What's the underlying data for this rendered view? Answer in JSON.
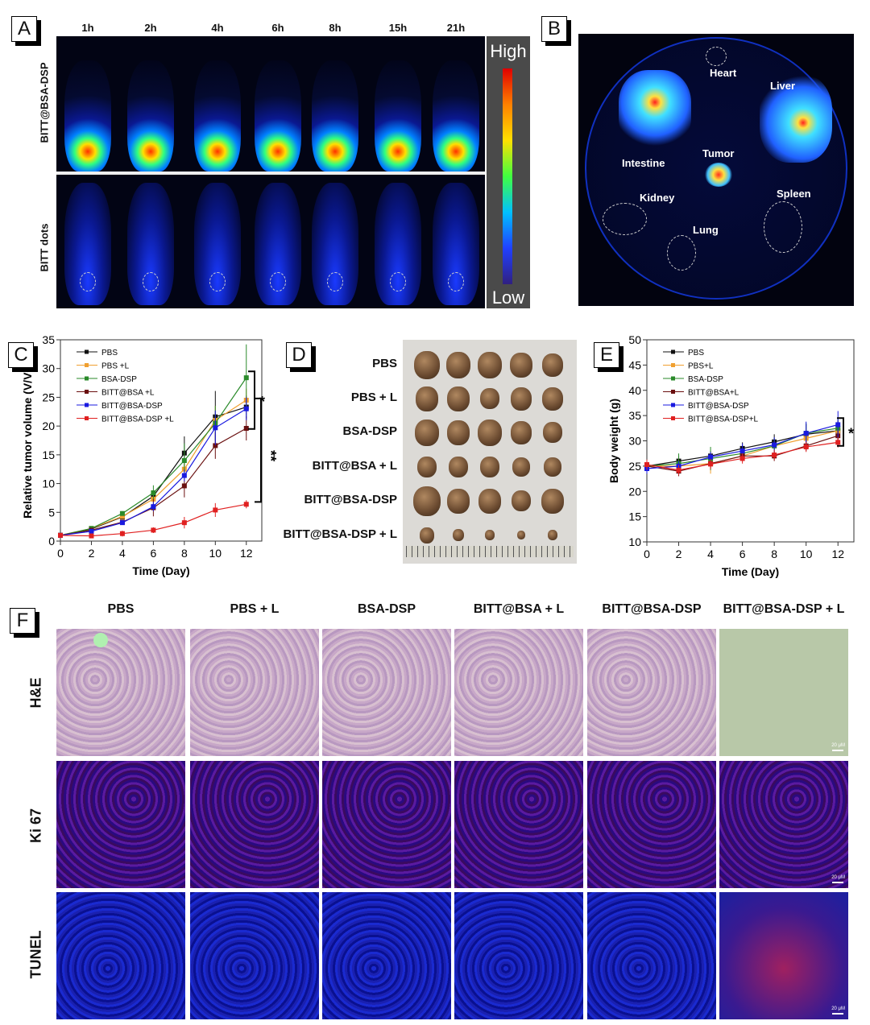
{
  "panels": {
    "A": {
      "label": "A",
      "times": [
        "1h",
        "2h",
        "4h",
        "6h",
        "8h",
        "15h",
        "21h"
      ],
      "rows": [
        "BITT@BSA-DSP",
        "BITT dots"
      ],
      "colorbar": {
        "high": "High",
        "low": "Low"
      }
    },
    "B": {
      "label": "B",
      "organs": {
        "heart": "Heart",
        "liver": "Liver",
        "intestine": "Intestine",
        "tumor": "Tumor",
        "kidney": "Kidney",
        "spleen": "Spleen",
        "lung": "Lung"
      }
    },
    "C": {
      "label": "C",
      "sig1": "*",
      "sig2": "**"
    },
    "D": {
      "label": "D",
      "rows": [
        "PBS",
        "PBS + L",
        "BSA-DSP",
        "BITT@BSA + L",
        "BITT@BSA-DSP",
        "BITT@BSA-DSP + L"
      ]
    },
    "E": {
      "label": "E",
      "sig": "*"
    },
    "F": {
      "label": "F",
      "columns": [
        "PBS",
        "PBS + L",
        "BSA-DSP",
        "BITT@BSA + L",
        "BITT@BSA-DSP",
        "BITT@BSA-DSP + L"
      ],
      "rows": [
        "H&E",
        "Ki 67",
        "TUNEL"
      ],
      "scalebar": "20 μM"
    }
  },
  "colors": {
    "PBS": "#111111",
    "PBS+L": "#f0a030",
    "BSA-DSP": "#2a8a2a",
    "BITT@BSA+L": "#6a1010",
    "BITT@BSA-DSP": "#1a1ae0",
    "BITT@BSA-DSP+L": "#e02020"
  },
  "chart_data": [
    {
      "type": "line",
      "id": "C",
      "xlabel": "Time (Day)",
      "ylabel": "Relative tumor volume (V/V0)",
      "xlim": [
        0,
        13
      ],
      "ylim": [
        0,
        35
      ],
      "xticks": [
        0,
        2,
        4,
        6,
        8,
        10,
        12
      ],
      "yticks": [
        0,
        5,
        10,
        15,
        20,
        25,
        30,
        35
      ],
      "x": [
        0,
        2,
        4,
        6,
        8,
        10,
        12
      ],
      "legend": "top-left",
      "series": [
        {
          "name": "PBS",
          "values": [
            1,
            2.1,
            4.2,
            7.8,
            15.3,
            21.6,
            23.3
          ],
          "err": [
            0.2,
            0.3,
            0.4,
            0.8,
            2.9,
            4.5,
            2
          ]
        },
        {
          "name": "PBS +L",
          "values": [
            1,
            2.2,
            4.3,
            7.3,
            12.5,
            21,
            24.5
          ],
          "err": [
            0.2,
            0.3,
            0.4,
            0.8,
            1.5,
            2.5,
            2
          ]
        },
        {
          "name": "BSA-DSP",
          "values": [
            1,
            2.2,
            4.8,
            8.4,
            14,
            20.5,
            28.4
          ],
          "err": [
            0.2,
            0.3,
            0.4,
            1.3,
            3,
            3,
            5.8
          ]
        },
        {
          "name": "BITT@BSA +L",
          "values": [
            1,
            1.9,
            3.3,
            5.8,
            9.6,
            16.6,
            19.6
          ],
          "err": [
            0.2,
            0.3,
            0.4,
            1.5,
            2,
            2.3,
            2.1
          ]
        },
        {
          "name": "BITT@BSA-DSP",
          "values": [
            1,
            1.7,
            3.2,
            6,
            11.4,
            19.7,
            23
          ],
          "err": [
            0.2,
            0.3,
            0.4,
            0.8,
            1,
            3,
            2
          ]
        },
        {
          "name": "BITT@BSA-DSP +L",
          "values": [
            1,
            0.9,
            1.3,
            1.9,
            3.2,
            5.4,
            6.4
          ],
          "err": [
            0.4,
            0.3,
            0.5,
            0.5,
            1,
            1.2,
            0.7
          ]
        }
      ]
    },
    {
      "type": "line",
      "id": "E",
      "xlabel": "Time (Day)",
      "ylabel": "Body weight (g)",
      "xlim": [
        0,
        13
      ],
      "ylim": [
        10,
        50
      ],
      "xticks": [
        0,
        2,
        4,
        6,
        8,
        10,
        12
      ],
      "yticks": [
        10,
        15,
        20,
        25,
        30,
        35,
        40,
        45,
        50
      ],
      "x": [
        0,
        2,
        4,
        6,
        8,
        10,
        12
      ],
      "legend": "top-left",
      "series": [
        {
          "name": "PBS",
          "values": [
            25,
            26,
            27,
            28.5,
            29.8,
            31.3,
            32
          ],
          "err": [
            1,
            1,
            1,
            1.2,
            1.5,
            2,
            2
          ]
        },
        {
          "name": "PBS+L",
          "values": [
            25,
            25,
            25.5,
            27,
            29,
            30.5,
            32
          ],
          "err": [
            1,
            1.5,
            2,
            1,
            1,
            1.5,
            1.5
          ]
        },
        {
          "name": "BSA-DSP",
          "values": [
            25,
            25.5,
            26.5,
            27.5,
            29,
            31.5,
            32.5
          ],
          "err": [
            1,
            2,
            2.3,
            1,
            1.5,
            2,
            2
          ]
        },
        {
          "name": "BITT@BSA+L",
          "values": [
            25,
            24,
            25.5,
            27,
            27,
            29,
            31
          ],
          "err": [
            1,
            1,
            1,
            1,
            1,
            1,
            1
          ]
        },
        {
          "name": "BITT@BSA-DSP",
          "values": [
            24.5,
            25,
            26.8,
            28,
            29.2,
            31.5,
            33.2
          ],
          "err": [
            1,
            1,
            1,
            1.5,
            1.5,
            2.3,
            2.7
          ]
        },
        {
          "name": "BITT@BSA-DSP+L",
          "values": [
            25.3,
            24.2,
            25.4,
            26.5,
            27.2,
            28.8,
            29.7
          ],
          "err": [
            1,
            1,
            1,
            1,
            1,
            1,
            1
          ]
        }
      ]
    }
  ]
}
